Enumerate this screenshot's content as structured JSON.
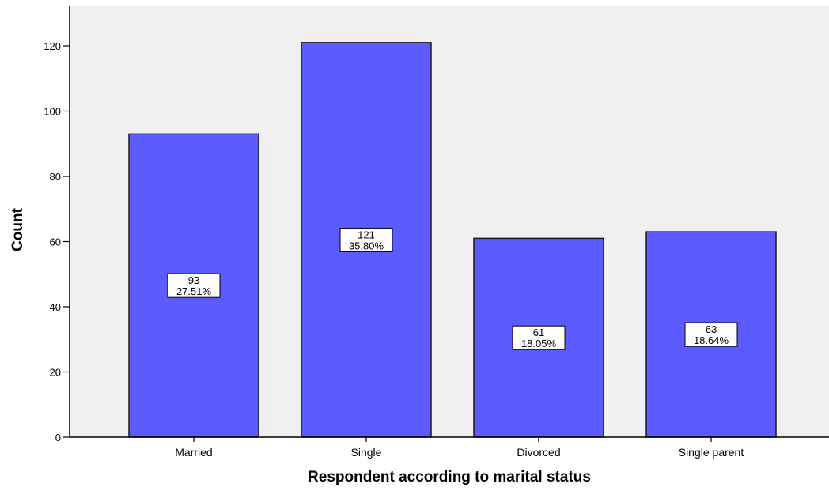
{
  "chart_data": {
    "type": "bar",
    "title": "",
    "xlabel": "Respondent according to marital status",
    "ylabel": "Count",
    "categories": [
      "Married",
      "Single",
      "Divorced",
      "Single parent"
    ],
    "values": [
      93,
      121,
      61,
      63
    ],
    "data_labels": [
      {
        "count": "93",
        "percent": "27.51%"
      },
      {
        "count": "121",
        "percent": "35.80%"
      },
      {
        "count": "61",
        "percent": "18.05%"
      },
      {
        "count": "63",
        "percent": "18.64%"
      }
    ],
    "ylim": [
      0,
      130
    ],
    "yticks": [
      0,
      20,
      40,
      60,
      80,
      100,
      120
    ],
    "grid": false,
    "legend": "none",
    "colors": {
      "bar_fill": "#5b5bff",
      "bar_stroke": "#1a1a1a",
      "plot_background": "#f0f0f0",
      "axis": "#000000"
    }
  }
}
